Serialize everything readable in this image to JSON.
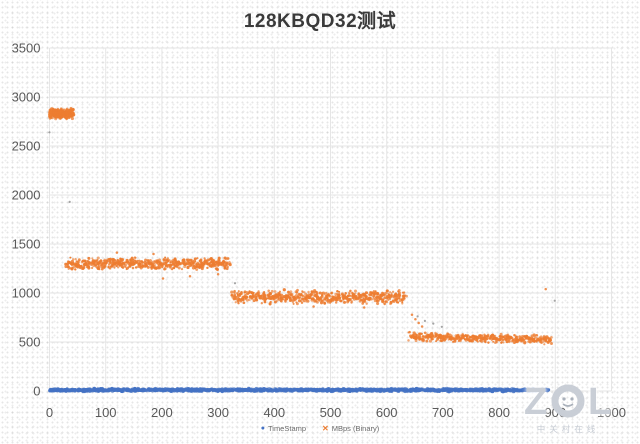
{
  "chart_data": {
    "type": "scatter",
    "title": "128KBQD32测试",
    "xlabel": "",
    "ylabel": "",
    "xlim": [
      0,
      1000
    ],
    "ylim": [
      0,
      3500
    ],
    "x_ticks": [
      0,
      100,
      200,
      300,
      400,
      500,
      600,
      700,
      800,
      900,
      1000
    ],
    "y_ticks": [
      0,
      500,
      1000,
      1500,
      2000,
      2500,
      3000,
      3500
    ],
    "grid": true,
    "legend_position": "bottom-center",
    "colors": {
      "grid": "#e6e6e6",
      "tick_text": "#595959",
      "stray": "#8f8f8f"
    },
    "series": [
      {
        "name": "TimeStamp",
        "marker": "circle",
        "color": "#4472c4",
        "point_radius": 1.7,
        "bands": [
          {
            "x_start": 0,
            "x_end": 887,
            "y_center": 10,
            "y_spread": 26,
            "slope": 0,
            "count": 1050
          }
        ],
        "outliers": []
      },
      {
        "name": "MBps (Binary)",
        "marker": "circle",
        "color": "#ed7d31",
        "point_radius": 1.25,
        "bands": [
          {
            "x_start": 1,
            "x_end": 41,
            "y_center": 2830,
            "y_spread": 115,
            "slope": 0,
            "count": 300
          },
          {
            "x_start": 30,
            "x_end": 321,
            "y_center": 1300,
            "y_spread": 135,
            "slope": 0,
            "count": 580
          },
          {
            "x_start": 326,
            "x_end": 633,
            "y_center": 958,
            "y_spread": 150,
            "slope": 0,
            "count": 580
          },
          {
            "x_start": 641,
            "x_end": 893,
            "y_center": 556,
            "y_spread": 100,
            "slope": -0.13,
            "count": 450
          }
        ],
        "outliers": [
          [
            120,
            1412
          ],
          [
            185,
            1398
          ],
          [
            202,
            1148
          ],
          [
            250,
            1170
          ],
          [
            300,
            1192
          ],
          [
            470,
            862
          ],
          [
            560,
            852
          ],
          [
            645,
            778
          ],
          [
            651,
            732
          ],
          [
            657,
            694
          ],
          [
            663,
            658
          ],
          [
            883,
            1040
          ]
        ]
      }
    ],
    "stray_points": {
      "color": "#8f8f8f",
      "points": [
        [
          0,
          2640
        ],
        [
          36,
          1930
        ],
        [
          330,
          1100
        ],
        [
          655,
          762
        ],
        [
          668,
          715
        ],
        [
          683,
          688
        ],
        [
          698,
          655
        ],
        [
          899,
          921
        ]
      ]
    }
  },
  "legend": {
    "timestamp_marker": "●",
    "mbps_marker": "✕"
  },
  "watermark": {
    "text": "ZOL",
    "subtext": "中关村在线"
  }
}
